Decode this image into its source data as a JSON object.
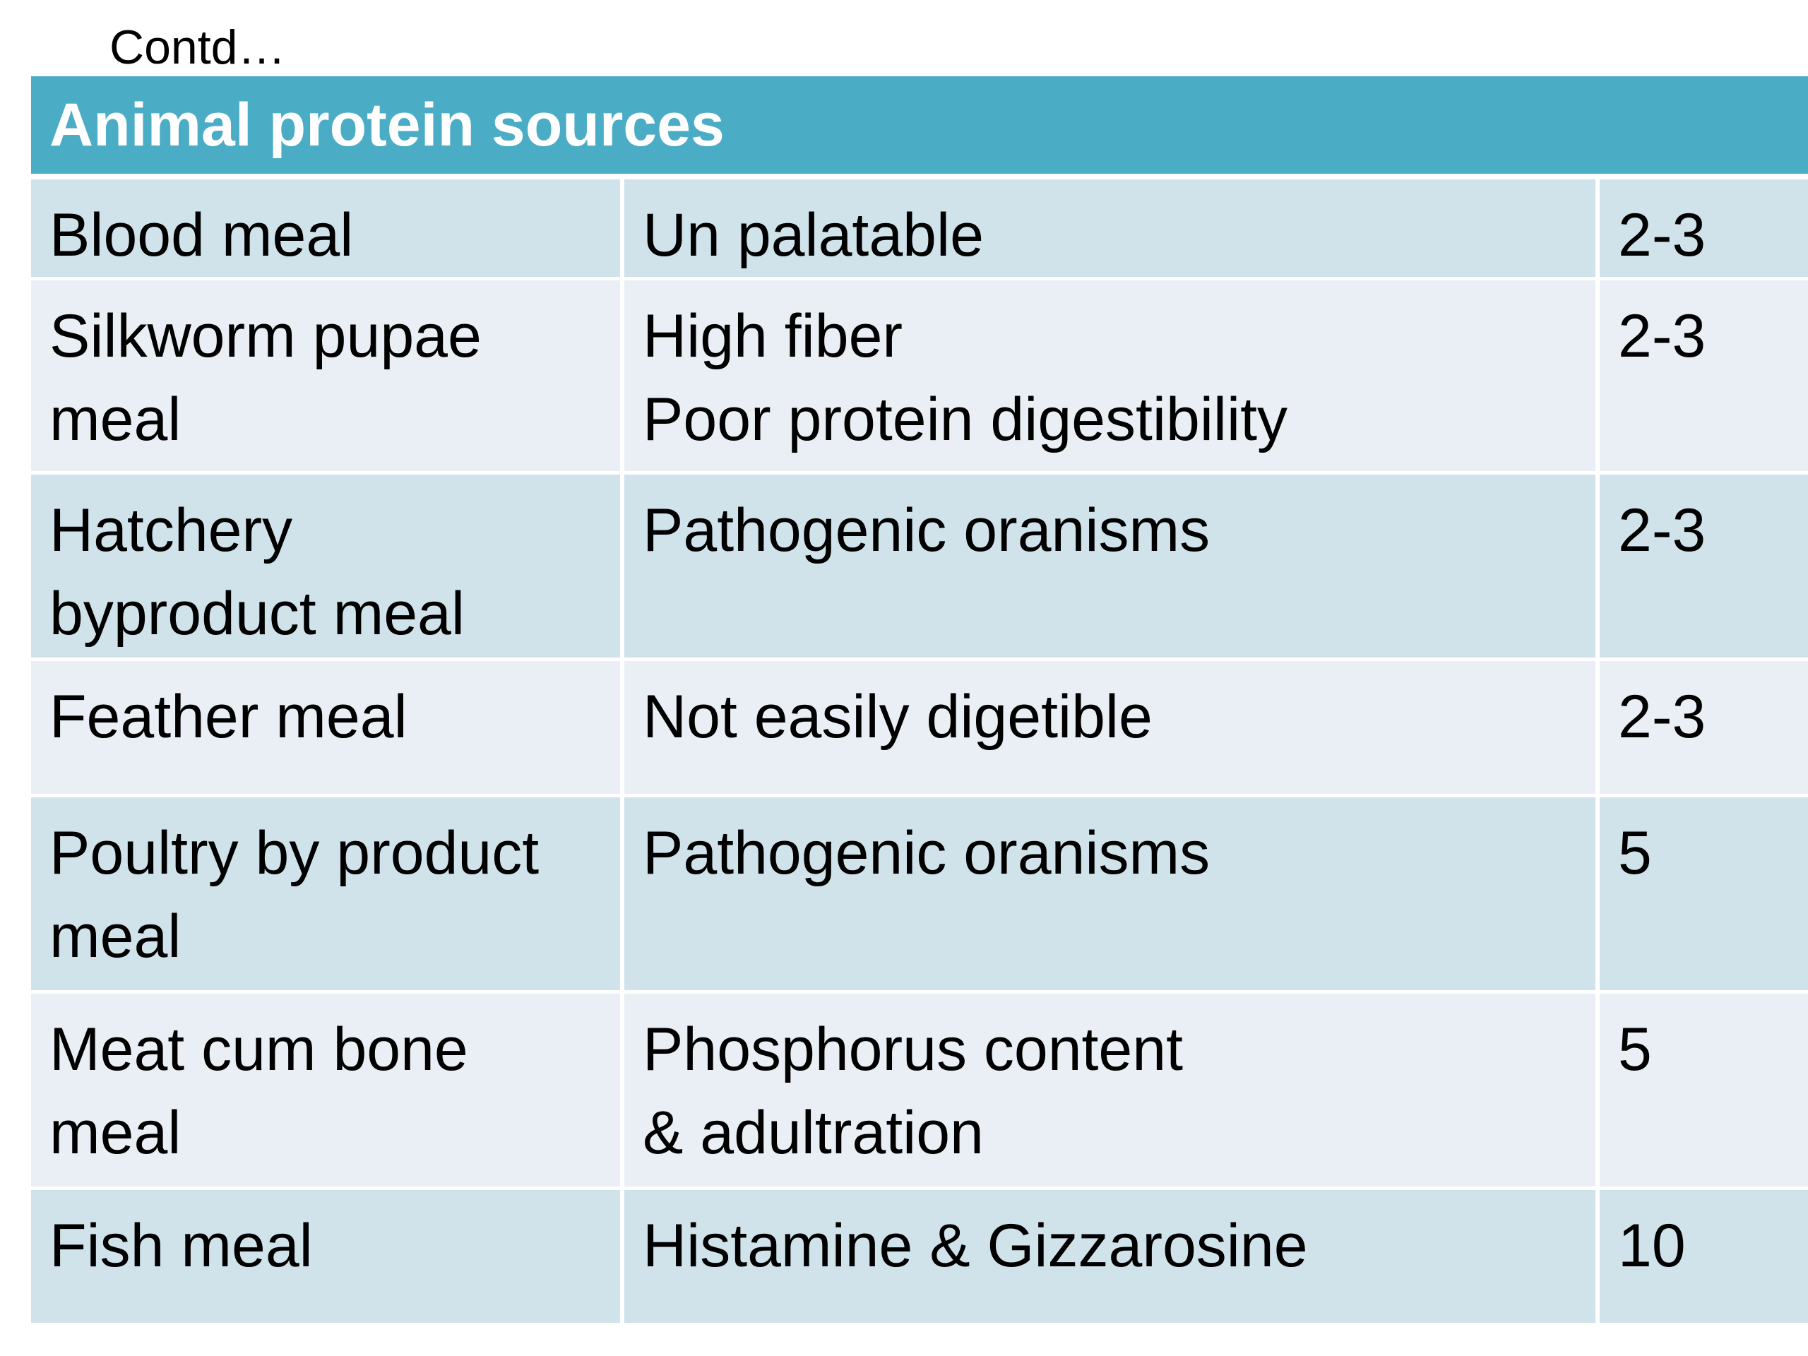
{
  "slide": {
    "continued_label": "Contd…"
  },
  "table": {
    "header": "Animal protein sources",
    "rows": [
      {
        "source": [
          "Blood meal"
        ],
        "issue": [
          "Un palatable"
        ],
        "value": "2-3"
      },
      {
        "source": [
          "Silkworm pupae",
          "meal"
        ],
        "issue": [
          "High fiber",
          "Poor protein digestibility"
        ],
        "value": "2-3"
      },
      {
        "source": [
          "Hatchery",
          "byproduct meal"
        ],
        "issue": [
          "Pathogenic oranisms"
        ],
        "value": "2-3"
      },
      {
        "source": [
          "Feather meal"
        ],
        "issue": [
          "Not easily digetible"
        ],
        "value": "2-3"
      },
      {
        "source": [
          "Poultry by product",
          "meal"
        ],
        "issue": [
          "Pathogenic oranisms"
        ],
        "value": "5"
      },
      {
        "source": [
          "Meat cum bone",
          "meal"
        ],
        "issue": [
          "Phosphorus content",
          "& adultration"
        ],
        "value": "5"
      },
      {
        "source": [
          "Fish meal"
        ],
        "issue": [
          "Histamine & Gizzarosine"
        ],
        "value": "10"
      }
    ]
  },
  "colors": {
    "header_bg": "#4bacc6",
    "row_shade_a": "#d0e3ea",
    "row_shade_b": "#e9eff4"
  }
}
